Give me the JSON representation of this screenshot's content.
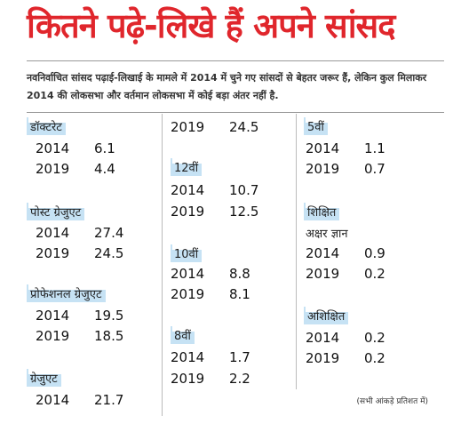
{
  "header": {
    "title": "कितने पढ़े-लिखे हैं अपने सांसद",
    "subtitle": "नवनिर्वाचित सांसद पढ़ाई-लिखाई के मामले में 2014 में चुने गए सांसदों से बेहतर जरूर हैं, लेकिन कुल मिलाकर 2014 की लोकसभा और वर्तमान लोकसभा में कोई बड़ा अंतर नहीं है."
  },
  "groups": [
    {
      "label": "डॉक्टरेट",
      "rows": [
        [
          2014,
          6.1
        ],
        [
          2019,
          4.4
        ]
      ]
    },
    {
      "label": "पोस्ट ग्रेजुएट",
      "rows": [
        [
          2014,
          27.4
        ],
        [
          2019,
          24.5
        ]
      ]
    },
    {
      "label": "प्रोफेशनल ग्रेजुएट",
      "rows": [
        [
          2014,
          19.5
        ],
        [
          2019,
          18.5
        ]
      ]
    },
    {
      "label": "ग्रेजुएट",
      "rows": [
        [
          2014,
          21.7
        ],
        [
          2019,
          24.5
        ]
      ]
    },
    {
      "label": "12वीं",
      "rows": [
        [
          2014,
          10.7
        ],
        [
          2019,
          12.5
        ]
      ]
    },
    {
      "label": "10वीं",
      "rows": [
        [
          2014,
          8.8
        ],
        [
          2019,
          8.1
        ]
      ]
    },
    {
      "label": "8वीं",
      "rows": [
        [
          2014,
          1.7
        ],
        [
          2019,
          2.2
        ]
      ]
    },
    {
      "label": "5वीं",
      "rows": [
        [
          2014,
          1.1
        ],
        [
          2019,
          0.7
        ]
      ]
    },
    {
      "label": "शिक्षित",
      "sublabel": "अक्षर ज्ञान",
      "rows": [
        [
          2014,
          0.9
        ],
        [
          2019,
          0.2
        ]
      ]
    },
    {
      "label": "अशिक्षित",
      "rows": [
        [
          2014,
          0.2
        ],
        [
          2019,
          0.2
        ]
      ]
    }
  ],
  "footnote": "(सभी आंकड़े प्रतिशत में)"
}
